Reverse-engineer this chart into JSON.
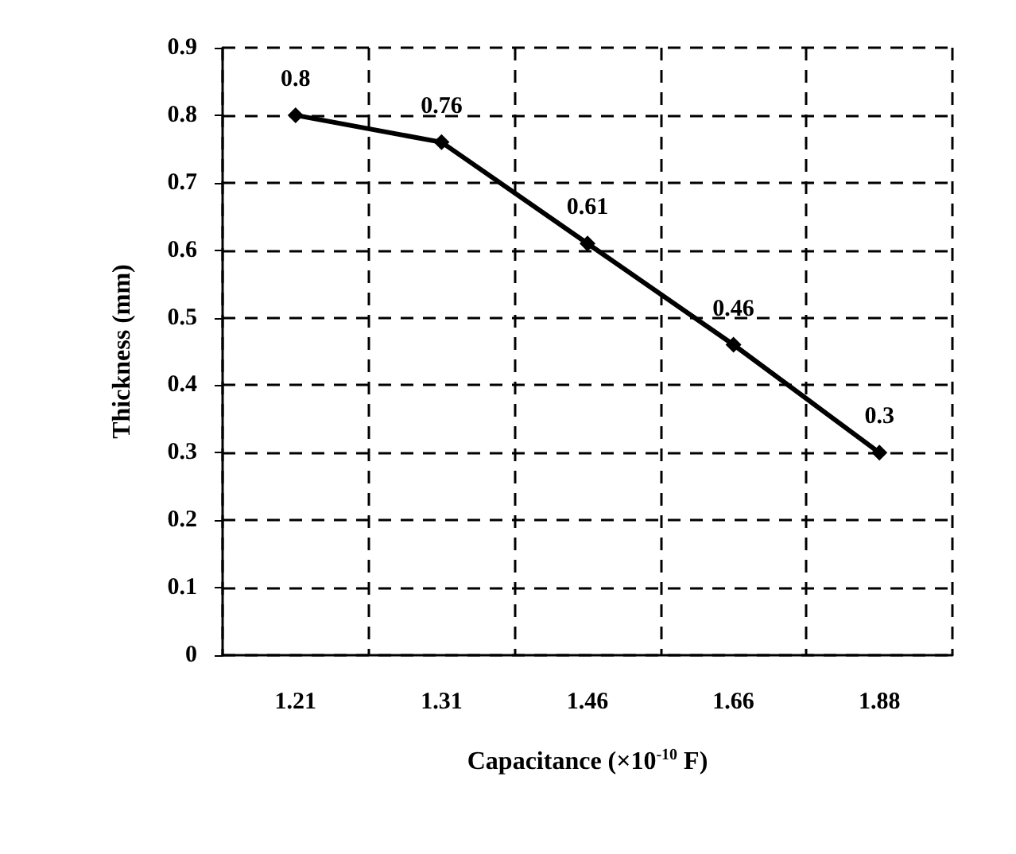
{
  "chart_data": {
    "type": "line",
    "categories": [
      "1.21",
      "1.31",
      "1.46",
      "1.66",
      "1.88"
    ],
    "series": [
      {
        "color": "#000000",
        "values": [
          0.8,
          0.76,
          0.61,
          0.46,
          0.3
        ]
      }
    ],
    "xlabel": "Capacitance (×10$^{-10}$ F)",
    "ylabel": "Thickness (mm)",
    "ylim": [
      0,
      0.9
    ],
    "yticks": [
      0,
      0.1,
      0.2,
      0.3,
      0.4,
      0.5,
      0.6,
      0.7,
      0.8,
      0.9
    ],
    "grid": true,
    "data_labels": true,
    "marker": "diamond",
    "line_style": "solid"
  }
}
